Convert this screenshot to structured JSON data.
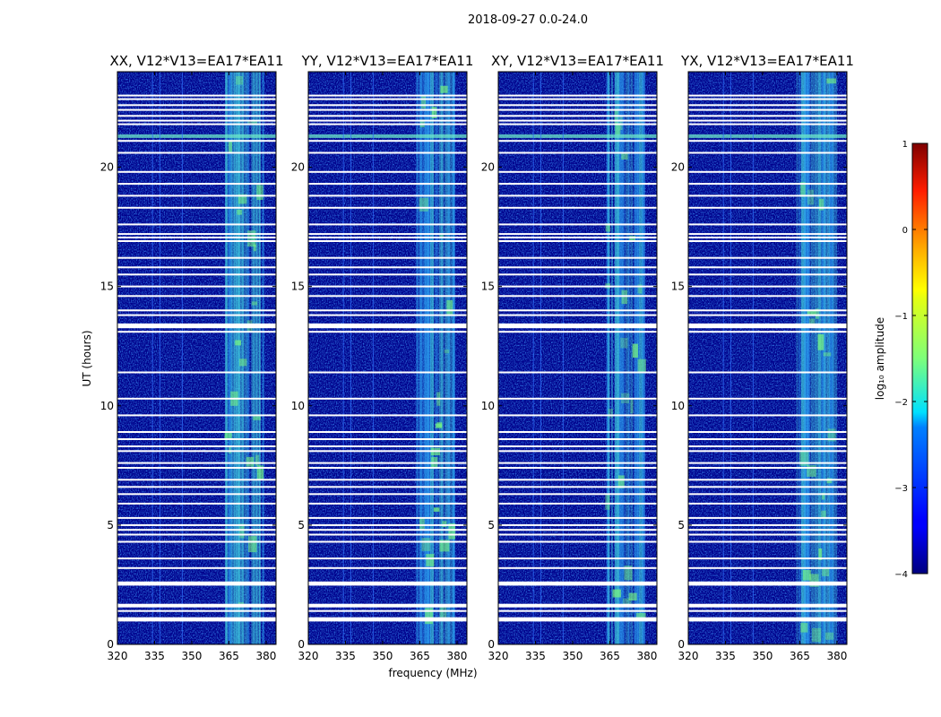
{
  "chart_data": {
    "type": "heatmap",
    "suptitle": "2018-09-27 0.0-24.0",
    "xlabel": "frequency (MHz)",
    "ylabel": "UT (hours)",
    "xlim": [
      320,
      384
    ],
    "ylim": [
      0,
      24
    ],
    "xticks": [
      320,
      335,
      350,
      365,
      380
    ],
    "xtick_labels": [
      "320",
      "335",
      "350",
      "365",
      "380"
    ],
    "yticks": [
      0,
      5,
      10,
      15,
      20
    ],
    "ytick_labels": [
      "0",
      "5",
      "10",
      "15",
      "20"
    ],
    "panels": [
      {
        "title": "XX, V12*V13=EA17*EA11"
      },
      {
        "title": "YY, V12*V13=EA17*EA11"
      },
      {
        "title": "XY, V12*V13=EA17*EA11"
      },
      {
        "title": "YX, V12*V13=EA17*EA11"
      }
    ],
    "colorbar": {
      "label": "log₁₀ amplitude",
      "range": [
        -4,
        1
      ],
      "ticks": [
        1,
        0,
        -1,
        -2,
        -3,
        -4
      ],
      "tick_labels": [
        "1",
        "0",
        "−1",
        "−2",
        "−3",
        "−4"
      ],
      "colormap": "jet"
    },
    "flagged_ut_hours": [
      23.0,
      22.85,
      22.6,
      22.4,
      22.15,
      21.95,
      21.8,
      21.1,
      20.6,
      19.8,
      19.3,
      18.8,
      18.3,
      17.6,
      17.2,
      17.05,
      16.9,
      16.2,
      15.8,
      15.5,
      15.0,
      14.6,
      14.0,
      13.8,
      13.4,
      13.3,
      13.1,
      11.4,
      10.3,
      9.6,
      8.9,
      8.6,
      8.3,
      8.1,
      7.6,
      7.4,
      6.9,
      6.6,
      6.3,
      5.9,
      5.3,
      5.0,
      4.8,
      4.6,
      4.3,
      3.6,
      3.2,
      2.6,
      2.5,
      1.6,
      1.4,
      1.1,
      1.0
    ],
    "rfi_band_mhz": [
      363,
      379
    ],
    "strong_rfi_ut_hours": [
      21.3
    ],
    "colors": {
      "background": "#00008b",
      "flag": "#ffffff",
      "frame": "#000000"
    }
  }
}
